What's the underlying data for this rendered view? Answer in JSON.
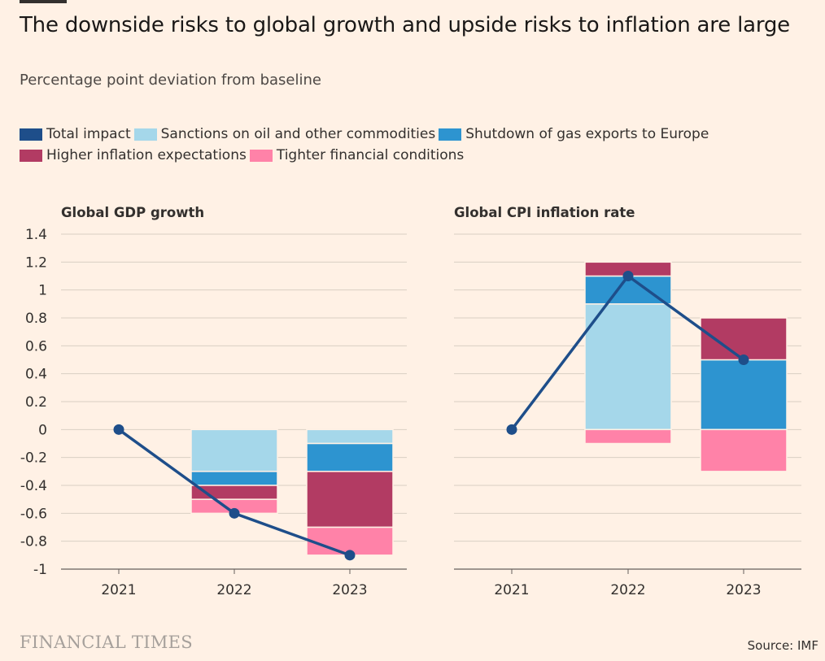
{
  "title": "The downside risks to global growth and upside risks to inflation are large",
  "subtitle": "Percentage point deviation from baseline",
  "legend": [
    {
      "label": "Total impact",
      "color": "#1e4e8a"
    },
    {
      "label": "Sanctions on oil and other commodities",
      "color": "#a5d7ea"
    },
    {
      "label": "Shutdown of gas exports to Europe",
      "color": "#2d94d0"
    },
    {
      "label": "Higher inflation expectations",
      "color": "#b23b63"
    },
    {
      "label": "Tighter financial conditions",
      "color": "#ff82a8"
    }
  ],
  "footer": {
    "logo": "FINANCIAL TIMES",
    "source": "Source: IMF"
  },
  "chart_data": [
    {
      "type": "bar",
      "stacked": true,
      "title": "Global GDP growth",
      "categories": [
        "2021",
        "2022",
        "2023"
      ],
      "ylim": [
        -1,
        1.4
      ],
      "yticks": [
        "1.4",
        "1.2",
        "1",
        "0.8",
        "0.6",
        "0.4",
        "0.2",
        "0",
        "-0.2",
        "-0.4",
        "-0.6",
        "-0.8",
        "-1"
      ],
      "grid": true,
      "series": [
        {
          "name": "Sanctions on oil and other commodities",
          "values": [
            0,
            -0.3,
            -0.1
          ]
        },
        {
          "name": "Shutdown of gas exports to Europe",
          "values": [
            0,
            -0.1,
            -0.2
          ]
        },
        {
          "name": "Higher inflation expectations",
          "values": [
            0,
            -0.1,
            -0.4
          ]
        },
        {
          "name": "Tighter financial conditions",
          "values": [
            0,
            -0.1,
            -0.2
          ]
        }
      ],
      "line": {
        "name": "Total impact",
        "values": [
          0,
          -0.6,
          -0.9
        ]
      }
    },
    {
      "type": "bar",
      "stacked": true,
      "title": "Global CPI inflation rate",
      "categories": [
        "2021",
        "2022",
        "2023"
      ],
      "ylim": [
        -1,
        1.4
      ],
      "grid": true,
      "series": [
        {
          "name": "Sanctions on oil and other commodities",
          "values": [
            0,
            0.9,
            0
          ]
        },
        {
          "name": "Shutdown of gas exports to Europe",
          "values": [
            0,
            0.2,
            0.5
          ]
        },
        {
          "name": "Higher inflation expectations",
          "values": [
            0,
            0.1,
            0.3
          ]
        },
        {
          "name": "Tighter financial conditions",
          "values": [
            0,
            -0.1,
            -0.3
          ]
        }
      ],
      "line": {
        "name": "Total impact",
        "values": [
          0,
          1.1,
          0.5
        ]
      }
    }
  ]
}
